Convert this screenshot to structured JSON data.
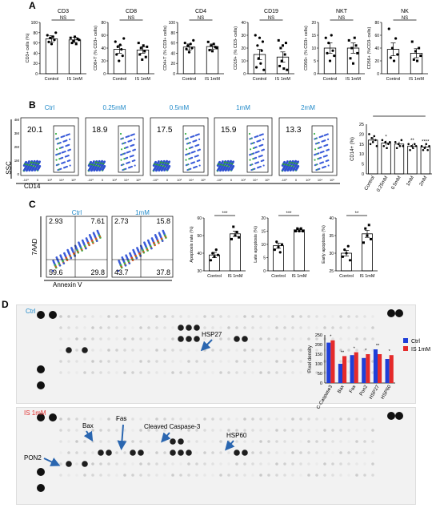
{
  "panel_labels": {
    "a": "A",
    "b": "B",
    "c": "C",
    "d": "D"
  },
  "panelA": {
    "ns": "NS",
    "xlabels": [
      "Control",
      "IS 1mM"
    ],
    "plots": [
      {
        "title": "CD3",
        "ylabel": "CD3+ cells (%)",
        "yticks": [
          "0",
          "20",
          "40",
          "60",
          "80",
          "100"
        ],
        "ymax": 100,
        "bars": [
          68,
          66
        ],
        "err": [
          6,
          5
        ],
        "pts": [
          [
            75,
            62,
            70,
            58,
            72,
            66,
            80
          ],
          [
            70,
            60,
            64,
            72,
            58,
            68,
            66
          ]
        ]
      },
      {
        "title": "CD8",
        "ylabel": "CD8+T (% CD3+ cells)",
        "yticks": [
          "0",
          "20",
          "40",
          "60",
          "80"
        ],
        "ymax": 80,
        "bars": [
          38,
          37
        ],
        "err": [
          6,
          5
        ],
        "pts": [
          [
            50,
            30,
            42,
            20,
            45,
            38,
            28,
            55
          ],
          [
            48,
            30,
            40,
            22,
            44,
            35,
            26,
            42
          ]
        ]
      },
      {
        "title": "CD4",
        "ylabel": "CD4+T (% CD3+ cells)",
        "yticks": [
          "0",
          "20",
          "40",
          "60",
          "80",
          "100"
        ],
        "ymax": 100,
        "bars": [
          52,
          53
        ],
        "err": [
          6,
          5
        ],
        "pts": [
          [
            60,
            48,
            55,
            42,
            58,
            50,
            65
          ],
          [
            62,
            46,
            55,
            44,
            58,
            52,
            50
          ]
        ]
      },
      {
        "title": "CD19",
        "ylabel": "CD19+ (% CD3- cells)",
        "yticks": [
          "0",
          "10",
          "20",
          "30",
          "40"
        ],
        "ymax": 40,
        "bars": [
          15,
          13
        ],
        "err": [
          4,
          4
        ],
        "pts": [
          [
            30,
            5,
            22,
            12,
            28,
            8,
            18,
            25,
            3
          ],
          [
            26,
            6,
            20,
            10,
            22,
            4,
            15,
            24,
            3
          ]
        ]
      },
      {
        "title": "NKT",
        "ylabel": "CD56+ (% CD3+ cells)",
        "yticks": [
          "0",
          "5",
          "10",
          "15",
          "20"
        ],
        "ymax": 20,
        "bars": [
          10,
          10
        ],
        "err": [
          2,
          2
        ],
        "pts": [
          [
            14,
            8,
            12,
            5,
            15,
            9,
            7
          ],
          [
            13,
            6,
            10,
            4,
            14,
            11,
            8
          ]
        ]
      },
      {
        "title": "NK",
        "ylabel": "CD56+ (%CD3- cells)",
        "yticks": [
          "0",
          "20",
          "40",
          "60",
          "80"
        ],
        "ymax": 80,
        "bars": [
          38,
          32
        ],
        "err": [
          10,
          7
        ],
        "pts": [
          [
            70,
            25,
            40,
            20,
            55,
            30
          ],
          [
            50,
            22,
            35,
            20,
            40,
            28
          ]
        ]
      }
    ]
  },
  "panelB": {
    "headers": [
      "Ctrl",
      "0.25mM",
      "0.5mM",
      "1mM",
      "2mM"
    ],
    "values": [
      "20.1",
      "18.9",
      "17.5",
      "15.9",
      "13.3"
    ],
    "ssc": "SSC",
    "cd14": "CD14",
    "yticks_flow": [
      "4M",
      "3M",
      "2M",
      "1M",
      "0"
    ],
    "xticks_flow": [
      "-10³",
      "0",
      "10³",
      "10⁴",
      "10⁵"
    ],
    "bar": {
      "ylabel": "CD14+ (%)",
      "yticks": [
        "0",
        "5",
        "10",
        "15",
        "20",
        "25"
      ],
      "ymax": 25,
      "categories": [
        "Control",
        "0.25mM",
        "0.5mM",
        "1mM",
        "2mM"
      ],
      "values": [
        17,
        15.5,
        15,
        14,
        13.5
      ],
      "err": [
        1.5,
        1.2,
        1.2,
        1,
        0.8
      ],
      "sig": [
        "*",
        "",
        "**",
        "****"
      ],
      "pts": [
        [
          20,
          15,
          18,
          16,
          19,
          17,
          14
        ],
        [
          17,
          14,
          16,
          13,
          15,
          16
        ],
        [
          16,
          13,
          15,
          14,
          17,
          14
        ],
        [
          15,
          12,
          14,
          13,
          15,
          14
        ],
        [
          14,
          12,
          13,
          15,
          12,
          14
        ]
      ]
    }
  },
  "panelC": {
    "headers": [
      "Ctrl",
      "1mM"
    ],
    "quadrants": [
      [
        "2.93",
        "7.61",
        "59.6",
        "29.8"
      ],
      [
        "2.73",
        "15.8",
        "43.7",
        "37.8"
      ]
    ],
    "ylabel": "7AAD",
    "xlabel": "Annexin V",
    "plots": [
      {
        "ylabel": "Apoptosis rate (%)",
        "yticks": [
          "30",
          "40",
          "50",
          "60"
        ],
        "ymin": 30,
        "ymax": 60,
        "bars": [
          39,
          51
        ],
        "err": [
          1.5,
          1.5
        ],
        "sig": "***",
        "pts": [
          [
            36,
            40,
            38,
            42,
            39
          ],
          [
            48,
            55,
            50,
            52,
            49
          ]
        ]
      },
      {
        "ylabel": "Late apoptosis (%)",
        "yticks": [
          "0",
          "5",
          "10",
          "15",
          "20"
        ],
        "ymin": 0,
        "ymax": 20,
        "bars": [
          9.5,
          15.5
        ],
        "err": [
          1,
          0.5
        ],
        "sig": "***",
        "pts": [
          [
            8,
            11,
            9,
            7,
            10
          ],
          [
            15,
            16,
            15,
            16,
            15
          ]
        ]
      },
      {
        "ylabel": "Early apoptosis (%)",
        "yticks": [
          "25",
          "30",
          "35",
          "40"
        ],
        "ymin": 25,
        "ymax": 40,
        "bars": [
          30,
          35.5
        ],
        "err": [
          0.8,
          1
        ],
        "sig": "**",
        "pts": [
          [
            29,
            31,
            30,
            32,
            28
          ],
          [
            33,
            37,
            35,
            38,
            34
          ]
        ]
      }
    ],
    "xlabels": [
      "Control",
      "IS 1mM"
    ]
  },
  "panelD": {
    "ctrl_label": "Ctrl",
    "is_label": "IS 1mM",
    "blot_labels": {
      "hsp27": "HSP27",
      "bax": "Bax",
      "fas": "Fas",
      "cc3": "Cleaved Caspase-3",
      "hsp60": "HSP60",
      "pon2": "PON2"
    },
    "legend": [
      "Ctrl",
      "IS 1mM"
    ],
    "colors": {
      "ctrl": "#1f3fd8",
      "is": "#e52a2a"
    },
    "bar": {
      "ylabel": "Pixel density",
      "yticks": [
        "0",
        "50",
        "100",
        "150",
        "200",
        "250"
      ],
      "ymax": 250,
      "categories": [
        "C-Caspase3",
        "Bax",
        "Fas",
        "Pon2",
        "HSP27",
        "HSP60"
      ],
      "ctrl": [
        210,
        100,
        145,
        130,
        175,
        125
      ],
      "is": [
        222,
        140,
        160,
        150,
        150,
        145
      ],
      "sig": [
        "*",
        "**",
        "*",
        "*",
        "**",
        "*"
      ]
    }
  }
}
